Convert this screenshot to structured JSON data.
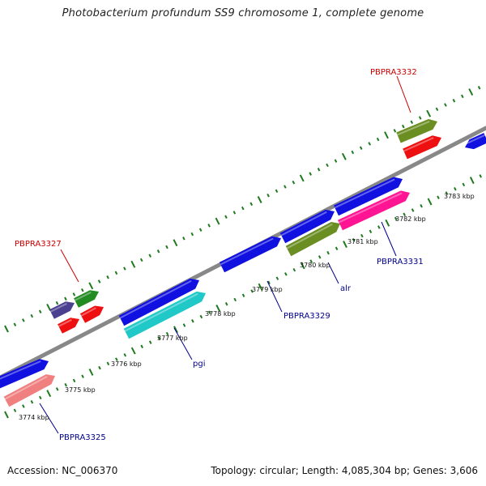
{
  "title": "Photobacterium profundum SS9 chromosome 1, complete genome",
  "footer": {
    "accession": "Accession: NC_006370",
    "stats": "Topology: circular; Length: 4,085,304 bp; Genes: 3,606"
  },
  "colors": {
    "backbone": "#888888",
    "tick": "#1f7a1f",
    "label_red": "#cc0000",
    "label_blue": "#00008b"
  },
  "kbp_labels": [
    "3774 kbp",
    "3775 kbp",
    "3776 kbp",
    "3777 kbp",
    "3778 kbp",
    "3779 kbp",
    "3780 kbp",
    "3781 kbp",
    "3782 kbp",
    "3783 kbp"
  ],
  "gene_labels": [
    {
      "id": "PBPRA3332",
      "text": "PBPRA3332",
      "color": "red"
    },
    {
      "id": "PBPRA3327",
      "text": "PBPRA3327",
      "color": "red"
    },
    {
      "id": "PBPRA3331",
      "text": "PBPRA3331",
      "color": "blue"
    },
    {
      "id": "alr",
      "text": "alr",
      "color": "blue"
    },
    {
      "id": "PBPRA3329",
      "text": "PBPRA3329",
      "color": "blue"
    },
    {
      "id": "pgi",
      "text": "pgi",
      "color": "blue"
    },
    {
      "id": "PBPRA3325",
      "text": "PBPRA3325",
      "color": "blue"
    }
  ],
  "genes": [
    {
      "name": "gene-3324",
      "color": "#1010e0"
    },
    {
      "name": "gene-3325",
      "color": "#f08080"
    },
    {
      "name": "gene-3326",
      "color": "#4b3f8f"
    },
    {
      "name": "gene-3327",
      "color": "#228b22"
    },
    {
      "name": "gene-3327-red-a",
      "color": "#ee1010"
    },
    {
      "name": "gene-3327-red-b",
      "color": "#ee1010"
    },
    {
      "name": "gene-pgi",
      "color": "#1010e0"
    },
    {
      "name": "gene-pgi-cyan",
      "color": "#20c8c8"
    },
    {
      "name": "gene-3329",
      "color": "#1010e0"
    },
    {
      "name": "gene-3330",
      "color": "#1010e0"
    },
    {
      "name": "gene-alr",
      "color": "#6b8e23"
    },
    {
      "name": "gene-3331-blue",
      "color": "#1010e0"
    },
    {
      "name": "gene-3331",
      "color": "#ff1493"
    },
    {
      "name": "gene-3332",
      "color": "#6b8e23"
    },
    {
      "name": "gene-3332-red",
      "color": "#ee1010"
    },
    {
      "name": "gene-3333",
      "color": "#1010e0"
    }
  ]
}
